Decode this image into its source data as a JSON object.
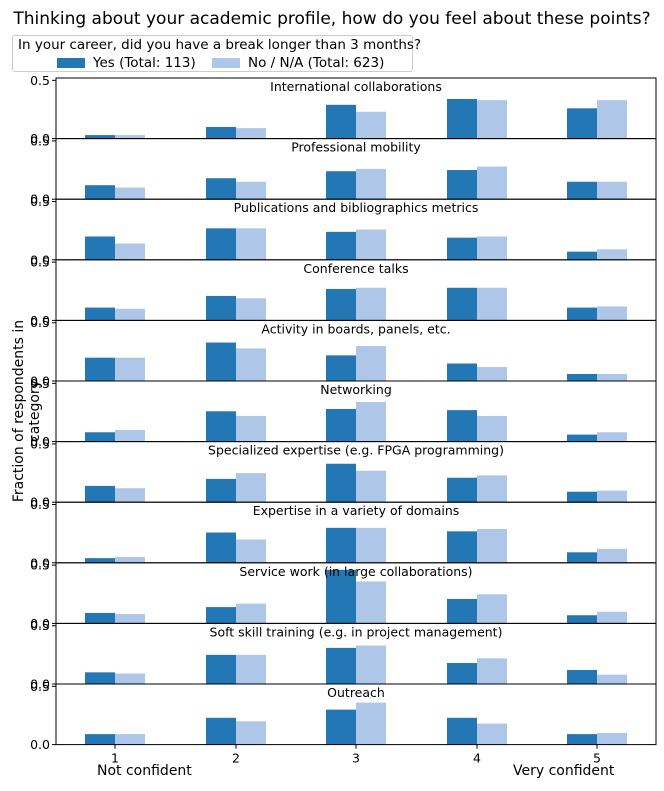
{
  "chart_data": {
    "type": "bar",
    "title": "Thinking about your academic profile, how do you feel about these points?",
    "ylabel": "Fraction of respondents in category",
    "xlabel_left": "Not confident",
    "xlabel_right": "Very confident",
    "x_ticks": [
      "1",
      "2",
      "3",
      "4",
      "5"
    ],
    "y_ticks": [
      "0.0",
      "0.5"
    ],
    "ylim": [
      0,
      0.52
    ],
    "legend": {
      "title": "In your career, did you have a break longer than 3 months?",
      "placement": "top-left"
    },
    "series": [
      {
        "name": "Yes (Total: 113)",
        "color": "#2277b4"
      },
      {
        "name": "No / N/A (Total: 623)",
        "color": "#aec7e8"
      }
    ],
    "panels": [
      {
        "title": "International collaborations",
        "yes": [
          0.03,
          0.1,
          0.29,
          0.34,
          0.26
        ],
        "no": [
          0.03,
          0.09,
          0.23,
          0.33,
          0.33
        ]
      },
      {
        "title": "Professional mobility",
        "yes": [
          0.12,
          0.18,
          0.24,
          0.25,
          0.15
        ],
        "no": [
          0.1,
          0.15,
          0.26,
          0.28,
          0.15
        ]
      },
      {
        "title": "Publications and bibliographics metrics",
        "yes": [
          0.2,
          0.27,
          0.24,
          0.19,
          0.07
        ],
        "no": [
          0.14,
          0.27,
          0.26,
          0.2,
          0.09
        ]
      },
      {
        "title": "Conference talks",
        "yes": [
          0.11,
          0.21,
          0.27,
          0.28,
          0.11
        ],
        "no": [
          0.1,
          0.19,
          0.28,
          0.28,
          0.12
        ]
      },
      {
        "title": "Activity in boards, panels, etc.",
        "yes": [
          0.2,
          0.33,
          0.22,
          0.15,
          0.06
        ],
        "no": [
          0.2,
          0.28,
          0.3,
          0.12,
          0.06
        ]
      },
      {
        "title": "Networking",
        "yes": [
          0.08,
          0.26,
          0.28,
          0.27,
          0.06
        ],
        "no": [
          0.1,
          0.22,
          0.34,
          0.22,
          0.08
        ]
      },
      {
        "title": "Specialized expertise (e.g. FPGA programming)",
        "yes": [
          0.14,
          0.2,
          0.33,
          0.21,
          0.09
        ],
        "no": [
          0.12,
          0.25,
          0.27,
          0.23,
          0.1
        ]
      },
      {
        "title": "Expertise in a variety of domains",
        "yes": [
          0.04,
          0.26,
          0.3,
          0.27,
          0.09
        ],
        "no": [
          0.05,
          0.2,
          0.3,
          0.29,
          0.12
        ]
      },
      {
        "title": "Service work (in large collaborations)",
        "yes": [
          0.09,
          0.14,
          0.46,
          0.21,
          0.07
        ],
        "no": [
          0.08,
          0.17,
          0.36,
          0.25,
          0.1
        ]
      },
      {
        "title": "Soft skill training (e.g. in project management)",
        "yes": [
          0.1,
          0.25,
          0.31,
          0.18,
          0.12
        ],
        "no": [
          0.09,
          0.25,
          0.33,
          0.22,
          0.08
        ]
      },
      {
        "title": "Outreach",
        "yes": [
          0.09,
          0.23,
          0.3,
          0.23,
          0.09
        ],
        "no": [
          0.09,
          0.2,
          0.36,
          0.18,
          0.1
        ]
      }
    ]
  }
}
